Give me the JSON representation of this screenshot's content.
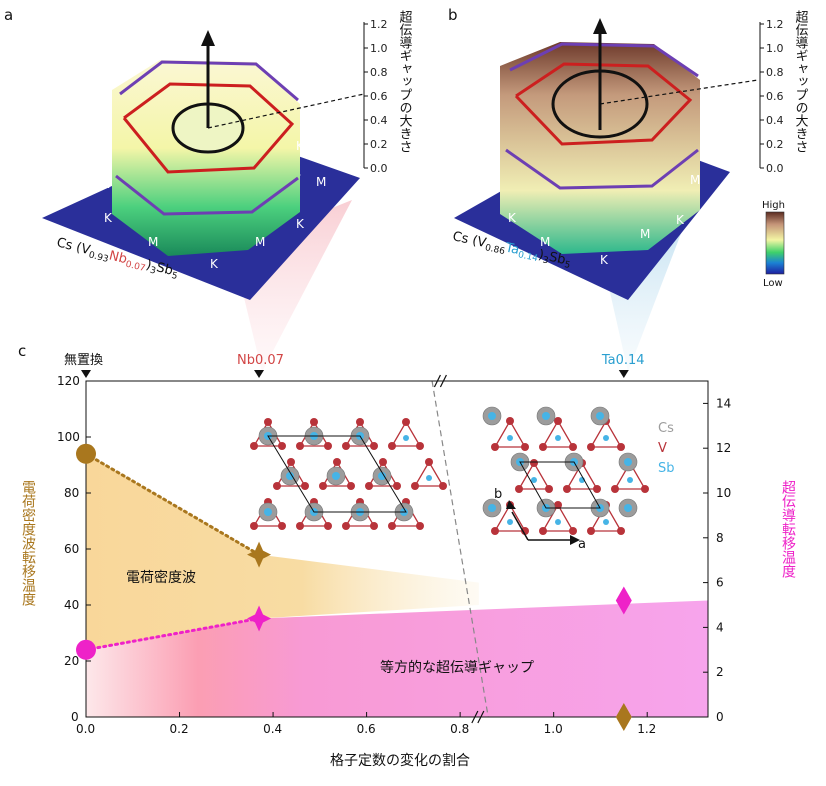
{
  "panels": {
    "a": {
      "label": "a",
      "compound": {
        "prefix": "Cs",
        "v": "(V",
        "v_sub": "0.93",
        "dopant": "Nb",
        "dopant_sub": "0.07",
        "close": ")",
        "close_sub": "3",
        "sb": "Sb",
        "sb_sub": "5"
      },
      "zaxis_title": "超伝導ギャップの大きさ",
      "zaxis_ticks": [
        "1.2",
        "1.0",
        "0.8",
        "0.6",
        "0.4",
        "0.2",
        "0.0"
      ],
      "bz_labels": {
        "m": "M",
        "k": "K"
      }
    },
    "b": {
      "label": "b",
      "compound": {
        "prefix": "Cs",
        "v": "(V",
        "v_sub": "0.86",
        "dopant": "Ta",
        "dopant_sub": "0.14",
        "close": ")",
        "close_sub": "3",
        "sb": "Sb",
        "sb_sub": "5"
      },
      "zaxis_title": "超伝導ギャップの大きさ",
      "zaxis_ticks": [
        "1.2",
        "1.0",
        "0.8",
        "0.6",
        "0.4",
        "0.2",
        "0.0"
      ],
      "colorbar": {
        "high": "High",
        "low": "Low"
      },
      "bz_labels": {
        "m": "M",
        "k": "K"
      }
    }
  },
  "chart_data": {
    "type": "scatter",
    "panel_label": "c",
    "xlabel": "格子定数の変化の割合",
    "ylabel_left": "電荷密度波転移温度",
    "ylabel_right": "超伝導転移温度",
    "xlim": [
      0.0,
      1.33
    ],
    "ylim_left": [
      0,
      120
    ],
    "ylim_right": [
      0,
      15
    ],
    "x_break": 0.84,
    "xticks": [
      {
        "v": 0.0,
        "label": "0.0"
      },
      {
        "v": 0.2,
        "label": "0.2"
      },
      {
        "v": 0.4,
        "label": "0.4"
      },
      {
        "v": 0.6,
        "label": "0.6"
      },
      {
        "v": 0.8,
        "label": "0.8"
      },
      {
        "v": 1.0,
        "label": "1.0"
      },
      {
        "v": 1.2,
        "label": "1.2"
      }
    ],
    "yticks_left": [
      0,
      20,
      40,
      60,
      80,
      100,
      120
    ],
    "yticks_right": [
      0,
      2,
      4,
      6,
      8,
      10,
      12,
      14
    ],
    "top_markers": [
      {
        "x": 0.0,
        "label": "無置換",
        "color": "#111111"
      },
      {
        "x": 0.37,
        "label": "Nb0.07",
        "color": "#d24545"
      },
      {
        "x": 1.15,
        "label": "Ta0.14",
        "color": "#2a9fd0"
      }
    ],
    "series": [
      {
        "name": "電荷密度波転移温度",
        "axis": "left",
        "color": "#a9771e",
        "points": [
          {
            "x": 0.0,
            "y": 94,
            "marker": "circle"
          },
          {
            "x": 0.37,
            "y": 58,
            "marker": "star"
          },
          {
            "x": 1.15,
            "y": 0,
            "marker": "diamond"
          }
        ],
        "dotted_segment": [
          0,
          1
        ]
      },
      {
        "name": "超伝導転移温度",
        "axis": "right",
        "color": "#ee22c8",
        "points": [
          {
            "x": 0.0,
            "y": 3.0,
            "marker": "circle"
          },
          {
            "x": 0.37,
            "y": 4.4,
            "marker": "star"
          },
          {
            "x": 1.15,
            "y": 5.2,
            "marker": "diamond"
          }
        ],
        "dotted_segment": [
          0,
          1
        ]
      }
    ],
    "regions": {
      "cdw_label": "電荷密度波",
      "sc_label": "等方的な超伝導ギャップ"
    },
    "legend": {
      "cs": "Cs",
      "v": "V",
      "sb": "Sb"
    },
    "lattice_axes": {
      "a": "a",
      "b": "b"
    }
  },
  "colors": {
    "cs": "#9c9c9c",
    "v": "#b8333a",
    "sb": "#46b4e6",
    "bz_blue": "#2a2f9a",
    "hex_red": "#cc1f1f",
    "hex_purple": "#6d3fb3"
  }
}
